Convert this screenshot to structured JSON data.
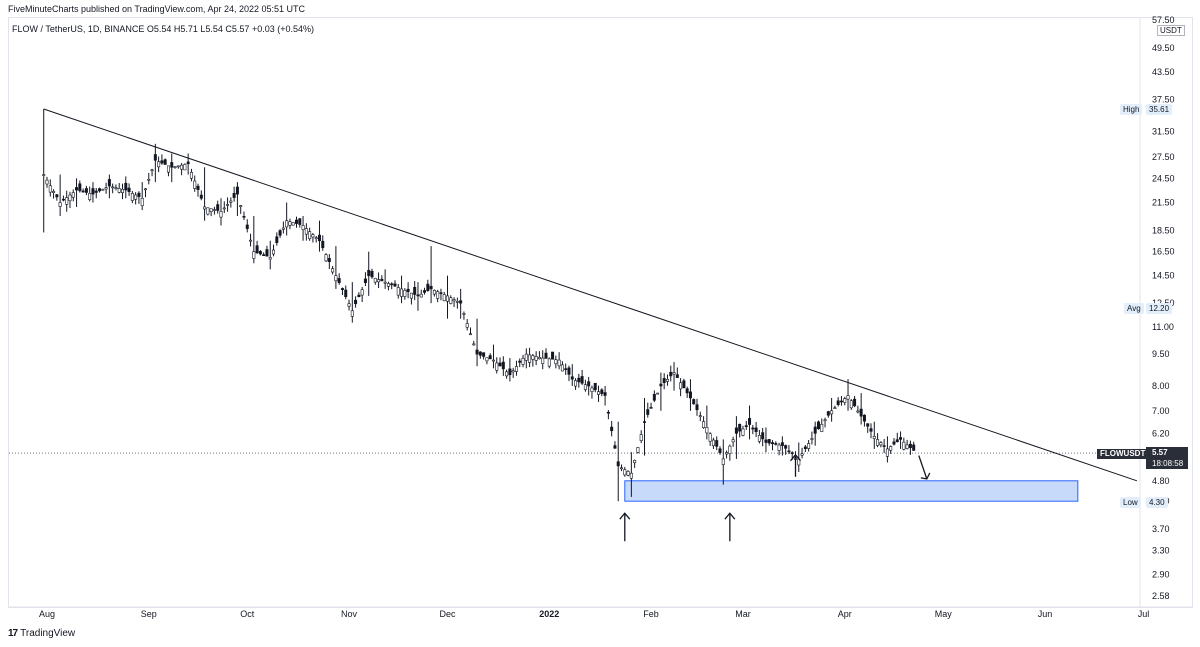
{
  "header": {
    "publisher_line": "FiveMinuteCharts published on TradingView.com, Apr 24, 2022 05:51 UTC",
    "info_line": "FLOW / TetherUS, 1D, BINANCE  O5.54  H5.71  L5.54  C5.57  +0.03 (+0.54%)",
    "currency": "USDT"
  },
  "footer": {
    "logo_mark": "17",
    "logo_text": "TradingView"
  },
  "markers": {
    "high_label": "High",
    "high_value": "35.61",
    "avg_label": "Avg",
    "avg_value": "12.20",
    "low_label": "Low",
    "low_value": "4.30",
    "symbol": "FLOWUSDT",
    "last_price": "5.57",
    "countdown": "18:08:58"
  },
  "colors": {
    "up": "#131722",
    "down": "#131722",
    "zone_fill": "#c7dafa",
    "zone_border": "#2962ff",
    "line": "#131722"
  },
  "chart_data": {
    "type": "candlestick",
    "title": "",
    "y_scale": "log",
    "y_ticks": [
      "57.50",
      "49.50",
      "43.50",
      "37.50",
      "31.50",
      "27.50",
      "24.50",
      "21.50",
      "18.50",
      "16.50",
      "14.50",
      "12.50",
      "11.00",
      "9.50",
      "8.00",
      "7.00",
      "6.20",
      "4.80",
      "4.30",
      "3.70",
      "3.30",
      "2.90",
      "2.58"
    ],
    "x_ticks": [
      {
        "label": "Aug",
        "date": "2021-08-01",
        "bold": false
      },
      {
        "label": "Sep",
        "date": "2021-09-01",
        "bold": false
      },
      {
        "label": "Oct",
        "date": "2021-10-01",
        "bold": false
      },
      {
        "label": "Nov",
        "date": "2021-11-01",
        "bold": false
      },
      {
        "label": "Dec",
        "date": "2021-12-01",
        "bold": false
      },
      {
        "label": "2022",
        "date": "2022-01-01",
        "bold": true
      },
      {
        "label": "Feb",
        "date": "2022-02-01",
        "bold": false
      },
      {
        "label": "Mar",
        "date": "2022-03-01",
        "bold": false
      },
      {
        "label": "Apr",
        "date": "2022-04-01",
        "bold": false
      },
      {
        "label": "May",
        "date": "2022-05-01",
        "bold": false
      },
      {
        "label": "Jun",
        "date": "2022-06-01",
        "bold": false
      },
      {
        "label": "Jul",
        "date": "2022-07-01",
        "bold": false
      }
    ],
    "close_series": [
      {
        "date": "2021-07-31",
        "close": 25.0,
        "high": 35.6,
        "low": 18.3
      },
      {
        "date": "2021-08-05",
        "close": 21.5,
        "high": 25.0,
        "low": 20.0
      },
      {
        "date": "2021-08-10",
        "close": 23.0,
        "high": 24.5,
        "low": 21.0
      },
      {
        "date": "2021-08-15",
        "close": 22.5,
        "high": 24.0,
        "low": 21.5
      },
      {
        "date": "2021-08-20",
        "close": 23.5,
        "high": 25.0,
        "low": 22.0
      },
      {
        "date": "2021-08-25",
        "close": 23.0,
        "high": 24.5,
        "low": 22.0
      },
      {
        "date": "2021-08-30",
        "close": 22.0,
        "high": 24.0,
        "low": 21.0
      },
      {
        "date": "2021-09-03",
        "close": 27.0,
        "high": 29.5,
        "low": 24.0
      },
      {
        "date": "2021-09-08",
        "close": 26.0,
        "high": 28.0,
        "low": 24.0
      },
      {
        "date": "2021-09-13",
        "close": 26.5,
        "high": 28.0,
        "low": 25.0
      },
      {
        "date": "2021-09-18",
        "close": 21.0,
        "high": 26.0,
        "low": 19.5
      },
      {
        "date": "2021-09-23",
        "close": 20.5,
        "high": 22.0,
        "low": 19.0
      },
      {
        "date": "2021-09-28",
        "close": 22.5,
        "high": 24.0,
        "low": 20.0
      },
      {
        "date": "2021-10-03",
        "close": 16.5,
        "high": 20.0,
        "low": 15.5
      },
      {
        "date": "2021-10-08",
        "close": 16.0,
        "high": 17.5,
        "low": 15.0
      },
      {
        "date": "2021-10-13",
        "close": 19.5,
        "high": 21.5,
        "low": 18.0
      },
      {
        "date": "2021-10-18",
        "close": 19.0,
        "high": 20.0,
        "low": 17.5
      },
      {
        "date": "2021-10-23",
        "close": 17.5,
        "high": 19.5,
        "low": 16.5
      },
      {
        "date": "2021-10-28",
        "close": 14.5,
        "high": 17.0,
        "low": 13.5
      },
      {
        "date": "2021-11-02",
        "close": 12.0,
        "high": 14.0,
        "low": 11.5
      },
      {
        "date": "2021-11-07",
        "close": 14.5,
        "high": 16.5,
        "low": 13.0
      },
      {
        "date": "2021-11-12",
        "close": 14.0,
        "high": 15.0,
        "low": 13.5
      },
      {
        "date": "2021-11-17",
        "close": 13.5,
        "high": 14.5,
        "low": 12.5
      },
      {
        "date": "2021-11-22",
        "close": 13.0,
        "high": 14.0,
        "low": 12.0
      },
      {
        "date": "2021-11-26",
        "close": 13.5,
        "high": 17.0,
        "low": 12.5
      },
      {
        "date": "2021-12-01",
        "close": 13.0,
        "high": 14.5,
        "low": 11.5
      },
      {
        "date": "2021-12-05",
        "close": 12.5,
        "high": 13.5,
        "low": 11.5
      },
      {
        "date": "2021-12-10",
        "close": 9.5,
        "high": 11.5,
        "low": 8.9
      },
      {
        "date": "2021-12-15",
        "close": 9.2,
        "high": 10.0,
        "low": 8.8
      },
      {
        "date": "2021-12-20",
        "close": 8.5,
        "high": 9.3,
        "low": 8.2
      },
      {
        "date": "2021-12-25",
        "close": 9.5,
        "high": 9.8,
        "low": 8.8
      },
      {
        "date": "2021-12-30",
        "close": 9.3,
        "high": 9.7,
        "low": 8.9
      },
      {
        "date": "2022-01-04",
        "close": 9.2,
        "high": 9.6,
        "low": 8.8
      },
      {
        "date": "2022-01-08",
        "close": 8.3,
        "high": 9.0,
        "low": 8.0
      },
      {
        "date": "2022-01-13",
        "close": 8.0,
        "high": 8.4,
        "low": 7.6
      },
      {
        "date": "2022-01-18",
        "close": 7.6,
        "high": 8.0,
        "low": 7.2
      },
      {
        "date": "2022-01-22",
        "close": 5.2,
        "high": 6.6,
        "low": 4.3
      },
      {
        "date": "2022-01-26",
        "close": 5.0,
        "high": 5.6,
        "low": 4.4
      },
      {
        "date": "2022-01-30",
        "close": 6.6,
        "high": 7.5,
        "low": 5.5
      },
      {
        "date": "2022-02-04",
        "close": 8.0,
        "high": 8.6,
        "low": 7.0
      },
      {
        "date": "2022-02-08",
        "close": 8.6,
        "high": 9.1,
        "low": 7.8
      },
      {
        "date": "2022-02-13",
        "close": 7.5,
        "high": 8.3,
        "low": 7.0
      },
      {
        "date": "2022-02-18",
        "close": 6.4,
        "high": 7.2,
        "low": 6.0
      },
      {
        "date": "2022-02-23",
        "close": 5.4,
        "high": 6.0,
        "low": 4.7
      },
      {
        "date": "2022-02-27",
        "close": 6.2,
        "high": 6.8,
        "low": 5.4
      },
      {
        "date": "2022-03-03",
        "close": 6.5,
        "high": 7.2,
        "low": 6.0
      },
      {
        "date": "2022-03-08",
        "close": 5.9,
        "high": 6.4,
        "low": 5.6
      },
      {
        "date": "2022-03-13",
        "close": 5.8,
        "high": 6.1,
        "low": 5.5
      },
      {
        "date": "2022-03-18",
        "close": 5.4,
        "high": 5.9,
        "low": 5.1
      },
      {
        "date": "2022-03-23",
        "close": 6.2,
        "high": 6.6,
        "low": 5.8
      },
      {
        "date": "2022-03-28",
        "close": 7.0,
        "high": 7.5,
        "low": 6.6
      },
      {
        "date": "2022-04-02",
        "close": 7.6,
        "high": 8.3,
        "low": 7.0
      },
      {
        "date": "2022-04-06",
        "close": 6.8,
        "high": 7.7,
        "low": 6.5
      },
      {
        "date": "2022-04-10",
        "close": 6.1,
        "high": 6.6,
        "low": 5.7
      },
      {
        "date": "2022-04-14",
        "close": 5.7,
        "high": 6.1,
        "low": 5.3
      },
      {
        "date": "2022-04-18",
        "close": 6.0,
        "high": 6.2,
        "low": 5.7
      },
      {
        "date": "2022-04-23",
        "close": 5.57,
        "high": 5.71,
        "low": 5.54
      }
    ],
    "trendline": {
      "from": {
        "date": "2021-07-31",
        "price": 35.6
      },
      "to": {
        "date": "2022-06-29",
        "price": 4.8
      }
    },
    "support_zone": {
      "from_date": "2022-01-24",
      "to_date": "2022-06-11",
      "low": 4.3,
      "high": 4.8
    },
    "arrows": [
      {
        "date": "2022-01-24",
        "direction": "up"
      },
      {
        "date": "2022-02-25",
        "direction": "up"
      },
      {
        "date": "2022-03-17",
        "direction": "up"
      },
      {
        "date": "2022-04-26",
        "direction": "down"
      }
    ]
  }
}
